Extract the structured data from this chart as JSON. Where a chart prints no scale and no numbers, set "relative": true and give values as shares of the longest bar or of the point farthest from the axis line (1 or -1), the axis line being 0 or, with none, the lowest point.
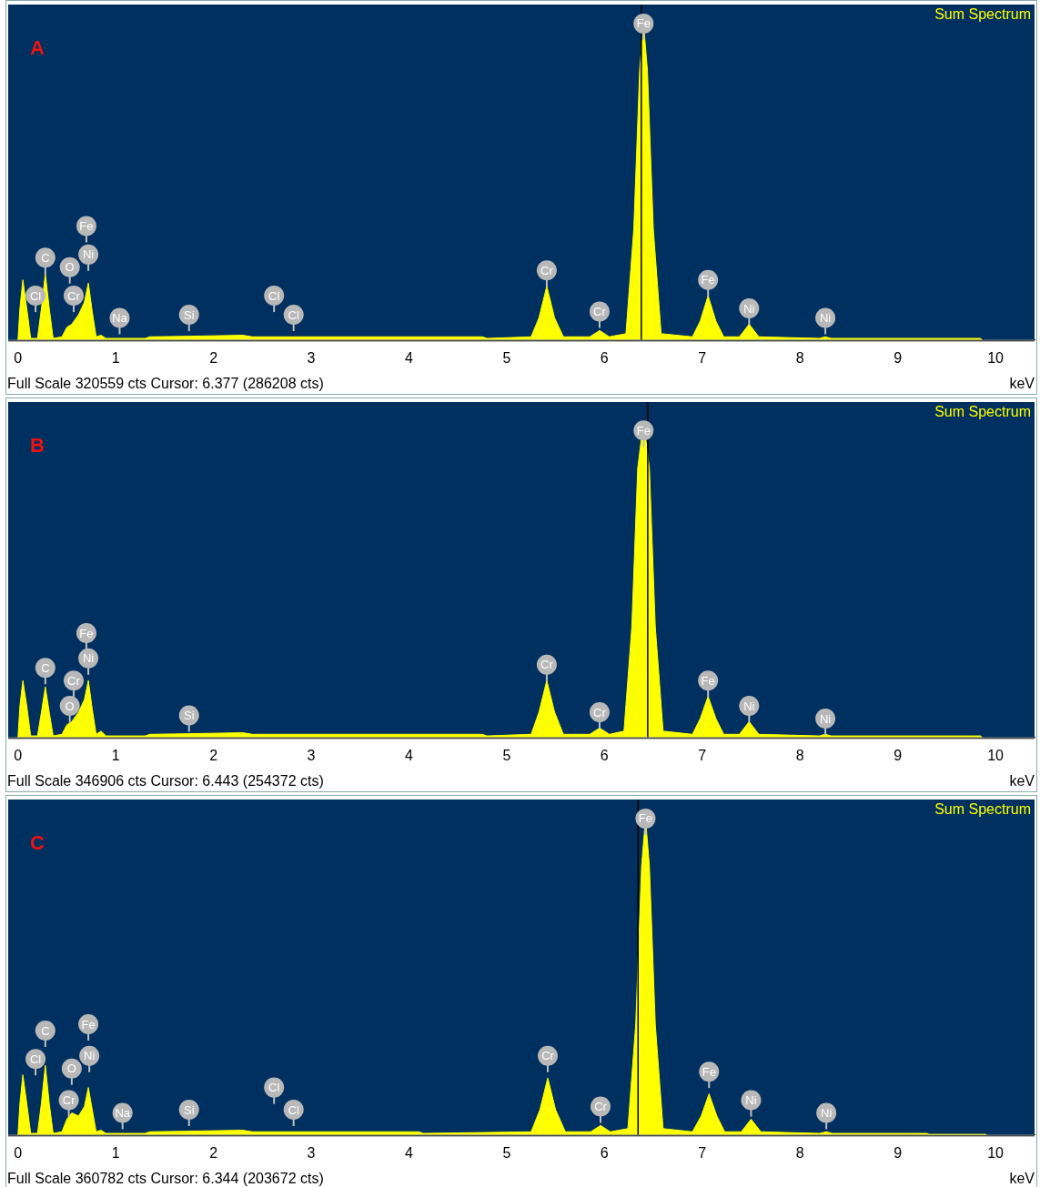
{
  "chart_data": [
    {
      "type": "area",
      "title": "Sum Spectrum",
      "xlabel": "keV",
      "relative": true,
      "legend": false,
      "grid": false,
      "marker": "none",
      "annotations": [
        "A",
        "Full Scale 320559 cts Cursor: 6.377 (286208 cts)",
        {
          "text": "Cl",
          "x": 0.18,
          "y": 0.14
        },
        {
          "text": "C",
          "x": 0.28,
          "y": 0.26
        },
        {
          "text": "O",
          "x": 0.53,
          "y": 0.23
        },
        {
          "text": "Cr",
          "x": 0.57,
          "y": 0.14
        },
        {
          "text": "Fe",
          "x": 0.7,
          "y": 0.36
        },
        {
          "text": "Ni",
          "x": 0.72,
          "y": 0.27
        },
        {
          "text": "Na",
          "x": 1.04,
          "y": 0.07
        },
        {
          "text": "Si",
          "x": 1.75,
          "y": 0.08
        },
        {
          "text": "Cl",
          "x": 2.62,
          "y": 0.14
        },
        {
          "text": "Cl",
          "x": 2.82,
          "y": 0.08
        },
        {
          "text": "Cr",
          "x": 5.41,
          "y": 0.22
        },
        {
          "text": "Cr",
          "x": 5.95,
          "y": 0.09
        },
        {
          "text": "Fe",
          "x": 6.4,
          "y": 1.0
        },
        {
          "text": "Fe",
          "x": 7.06,
          "y": 0.19
        },
        {
          "text": "Ni",
          "x": 7.48,
          "y": 0.1
        },
        {
          "text": "Ni",
          "x": 8.26,
          "y": 0.07
        }
      ],
      "xlim": [
        -0.1,
        10.4
      ],
      "xticks": [
        0,
        1,
        2,
        3,
        4,
        5,
        6,
        7,
        8,
        9,
        10
      ],
      "ref_lines": [
        {
          "axis": "x",
          "value": 6.377,
          "color": "#000000"
        }
      ],
      "series": [
        {
          "color": "#ffff00",
          "x": [
            0,
            0.02,
            0.05,
            0.09,
            0.13,
            0.2,
            0.24,
            0.28,
            0.32,
            0.36,
            0.45,
            0.5,
            0.55,
            0.62,
            0.68,
            0.72,
            0.76,
            0.8,
            0.85,
            0.9,
            1.3,
            1.35,
            1.75,
            2.3,
            2.4,
            4.75,
            4.8,
            5.25,
            5.33,
            5.41,
            5.49,
            5.58,
            5.85,
            5.95,
            6.05,
            6.22,
            6.3,
            6.36,
            6.4,
            6.44,
            6.5,
            6.58,
            6.9,
            6.98,
            7.06,
            7.14,
            7.22,
            7.38,
            7.48,
            7.58,
            8.2,
            8.26,
            8.32,
            9.85,
            9.86
          ],
          "values": [
            0,
            0.1,
            0.19,
            0.1,
            0.005,
            0.005,
            0.1,
            0.21,
            0.1,
            0.005,
            0.01,
            0.04,
            0.05,
            0.08,
            0.12,
            0.18,
            0.09,
            0.01,
            0.015,
            0.005,
            0.005,
            0.01,
            0.012,
            0.015,
            0.01,
            0.01,
            0.005,
            0.01,
            0.07,
            0.17,
            0.07,
            0.01,
            0.01,
            0.03,
            0.01,
            0.02,
            0.35,
            0.85,
            1,
            0.85,
            0.35,
            0.02,
            0.01,
            0.06,
            0.14,
            0.06,
            0.01,
            0.01,
            0.05,
            0.01,
            0.005,
            0.01,
            0.005,
            0.005,
            0
          ]
        }
      ]
    },
    {
      "type": "area",
      "title": "Sum Spectrum",
      "xlabel": "keV",
      "relative": true,
      "legend": false,
      "grid": false,
      "marker": "none",
      "annotations": [
        "B",
        "Full Scale 346906 cts Cursor: 6.443 (254372 cts)",
        {
          "text": "C",
          "x": 0.28,
          "y": 0.22
        },
        {
          "text": "O",
          "x": 0.53,
          "y": 0.1
        },
        {
          "text": "Cr",
          "x": 0.57,
          "y": 0.18
        },
        {
          "text": "Fe",
          "x": 0.7,
          "y": 0.33
        },
        {
          "text": "Ni",
          "x": 0.72,
          "y": 0.25
        },
        {
          "text": "Si",
          "x": 1.75,
          "y": 0.07
        },
        {
          "text": "Cr",
          "x": 5.41,
          "y": 0.23
        },
        {
          "text": "Cr",
          "x": 5.95,
          "y": 0.08
        },
        {
          "text": "Fe",
          "x": 6.4,
          "y": 0.97
        },
        {
          "text": "Fe",
          "x": 7.06,
          "y": 0.18
        },
        {
          "text": "Ni",
          "x": 7.48,
          "y": 0.1
        },
        {
          "text": "Ni",
          "x": 8.26,
          "y": 0.06
        }
      ],
      "xlim": [
        -0.1,
        10.4
      ],
      "xticks": [
        0,
        1,
        2,
        3,
        4,
        5,
        6,
        7,
        8,
        9,
        10
      ],
      "ref_lines": [
        {
          "axis": "x",
          "value": 6.443,
          "color": "#000000"
        }
      ],
      "series": [
        {
          "color": "#ffff00",
          "x": [
            0,
            0.02,
            0.05,
            0.09,
            0.13,
            0.2,
            0.24,
            0.28,
            0.32,
            0.36,
            0.45,
            0.5,
            0.55,
            0.62,
            0.68,
            0.72,
            0.76,
            0.8,
            0.85,
            0.9,
            1.3,
            1.35,
            1.75,
            2.3,
            2.4,
            4.75,
            4.8,
            5.25,
            5.33,
            5.41,
            5.49,
            5.58,
            5.85,
            5.95,
            6.05,
            6.2,
            6.28,
            6.34,
            6.4,
            6.46,
            6.52,
            6.6,
            6.9,
            6.98,
            7.06,
            7.14,
            7.22,
            7.38,
            7.48,
            7.58,
            8.2,
            8.26,
            8.32,
            9.85,
            9.86
          ],
          "values": [
            0,
            0.1,
            0.18,
            0.1,
            0.005,
            0.005,
            0.08,
            0.16,
            0.08,
            0.005,
            0.01,
            0.04,
            0.05,
            0.08,
            0.12,
            0.18,
            0.09,
            0.01,
            0.02,
            0.005,
            0.005,
            0.01,
            0.012,
            0.015,
            0.01,
            0.01,
            0.005,
            0.01,
            0.08,
            0.18,
            0.08,
            0.01,
            0.01,
            0.03,
            0.01,
            0.02,
            0.35,
            0.85,
            1,
            0.85,
            0.35,
            0.02,
            0.01,
            0.06,
            0.13,
            0.06,
            0.01,
            0.01,
            0.05,
            0.01,
            0.005,
            0.01,
            0.005,
            0.005,
            0
          ]
        }
      ]
    },
    {
      "type": "area",
      "title": "Sum Spectrum",
      "xlabel": "keV",
      "relative": true,
      "legend": false,
      "grid": false,
      "marker": "none",
      "annotations": [
        "C",
        "Full Scale 360782 cts Cursor: 6.344 (203672 cts)",
        {
          "text": "Cl",
          "x": 0.18,
          "y": 0.24
        },
        {
          "text": "C",
          "x": 0.28,
          "y": 0.33
        },
        {
          "text": "O",
          "x": 0.55,
          "y": 0.21
        },
        {
          "text": "Cr",
          "x": 0.52,
          "y": 0.11
        },
        {
          "text": "Fe",
          "x": 0.72,
          "y": 0.35
        },
        {
          "text": "Ni",
          "x": 0.73,
          "y": 0.25
        },
        {
          "text": "Na",
          "x": 1.07,
          "y": 0.07
        },
        {
          "text": "Si",
          "x": 1.75,
          "y": 0.08
        },
        {
          "text": "Cl",
          "x": 2.62,
          "y": 0.15
        },
        {
          "text": "Cl",
          "x": 2.82,
          "y": 0.08
        },
        {
          "text": "Cr",
          "x": 5.42,
          "y": 0.25
        },
        {
          "text": "Cr",
          "x": 5.96,
          "y": 0.09
        },
        {
          "text": "Fe",
          "x": 6.42,
          "y": 1
        },
        {
          "text": "Fe",
          "x": 7.07,
          "y": 0.2
        },
        {
          "text": "Ni",
          "x": 7.5,
          "y": 0.11
        },
        {
          "text": "Ni",
          "x": 8.27,
          "y": 0.07
        }
      ],
      "xlim": [
        -0.1,
        10.4
      ],
      "xticks": [
        0,
        1,
        2,
        3,
        4,
        5,
        6,
        7,
        8,
        9,
        10
      ],
      "ref_lines": [
        {
          "axis": "x",
          "value": 6.344,
          "color": "#000000"
        }
      ],
      "series": [
        {
          "color": "#ffff00",
          "x": [
            0,
            0.02,
            0.05,
            0.09,
            0.13,
            0.2,
            0.24,
            0.28,
            0.32,
            0.36,
            0.45,
            0.5,
            0.55,
            0.62,
            0.68,
            0.72,
            0.76,
            0.8,
            0.85,
            0.9,
            1.3,
            1.35,
            1.75,
            2.3,
            2.4,
            4.1,
            4.15,
            5.25,
            5.34,
            5.42,
            5.5,
            5.6,
            5.86,
            5.96,
            6.06,
            6.24,
            6.32,
            6.38,
            6.42,
            6.46,
            6.52,
            6.6,
            6.9,
            6.99,
            7.07,
            7.15,
            7.23,
            7.4,
            7.5,
            7.6,
            8.2,
            8.27,
            8.33,
            9.3,
            9.32,
            9.9,
            9.91
          ],
          "values": [
            0,
            0.1,
            0.19,
            0.1,
            0.005,
            0.005,
            0.1,
            0.22,
            0.1,
            0.005,
            0.01,
            0.05,
            0.07,
            0.06,
            0.09,
            0.15,
            0.08,
            0.01,
            0.015,
            0.005,
            0.005,
            0.01,
            0.012,
            0.015,
            0.01,
            0.01,
            0.005,
            0.01,
            0.08,
            0.18,
            0.08,
            0.01,
            0.01,
            0.03,
            0.01,
            0.02,
            0.35,
            0.85,
            1,
            0.85,
            0.35,
            0.02,
            0.01,
            0.06,
            0.13,
            0.06,
            0.01,
            0.01,
            0.05,
            0.01,
            0.005,
            0.01,
            0.005,
            0.005,
            0.002,
            0.002,
            0
          ]
        }
      ]
    }
  ]
}
